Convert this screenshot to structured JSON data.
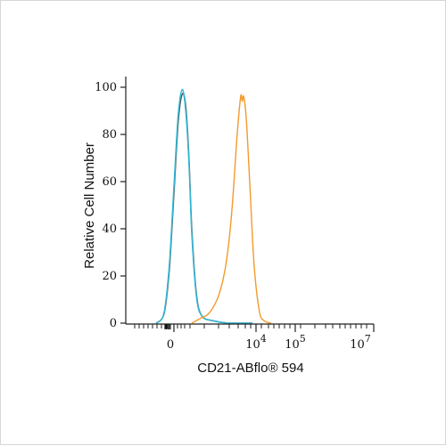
{
  "chart_data": {
    "type": "line",
    "title": "",
    "xlabel": "CD21-ABflo® 594",
    "ylabel": "Relative Cell Number",
    "ylim": [
      0,
      100
    ],
    "x_scale": "biexponential",
    "x_tick_labels": [
      {
        "base": "0",
        "exp": ""
      },
      {
        "base": "10",
        "exp": "4"
      },
      {
        "base": "10",
        "exp": "5"
      },
      {
        "base": "10",
        "exp": "7"
      }
    ],
    "y_tick_labels": [
      "0",
      "20",
      "40",
      "60",
      "80",
      "100"
    ],
    "y_ticks": [
      0,
      20,
      40,
      60,
      80,
      100
    ],
    "grid": false,
    "legend": "none",
    "series": [
      {
        "color": "#555555",
        "x": [
          -500,
          -300,
          -200,
          -100,
          0,
          100,
          200,
          300,
          400,
          500,
          700,
          1000,
          2000,
          5000,
          20000
        ],
        "y": [
          0,
          2,
          8,
          25,
          55,
          85,
          97,
          92,
          70,
          40,
          12,
          3,
          1,
          0,
          0
        ]
      },
      {
        "color": "#2fb8d6",
        "x": [
          -500,
          -300,
          -200,
          -100,
          0,
          100,
          200,
          300,
          400,
          500,
          700,
          1000,
          2000,
          5000,
          20000
        ],
        "y": [
          0,
          2,
          9,
          27,
          58,
          88,
          99,
          90,
          68,
          38,
          11,
          3,
          1,
          0,
          0
        ]
      },
      {
        "color": "#f39a2e",
        "x": [
          500,
          900,
          1500,
          2500,
          3500,
          4500,
          6000,
          8000,
          10000,
          11000,
          12000,
          14000,
          17000,
          22000,
          30000,
          40000,
          60000
        ],
        "y": [
          0,
          2,
          4,
          10,
          18,
          28,
          48,
          78,
          96,
          94,
          96,
          86,
          60,
          25,
          5,
          1,
          0
        ]
      }
    ]
  }
}
